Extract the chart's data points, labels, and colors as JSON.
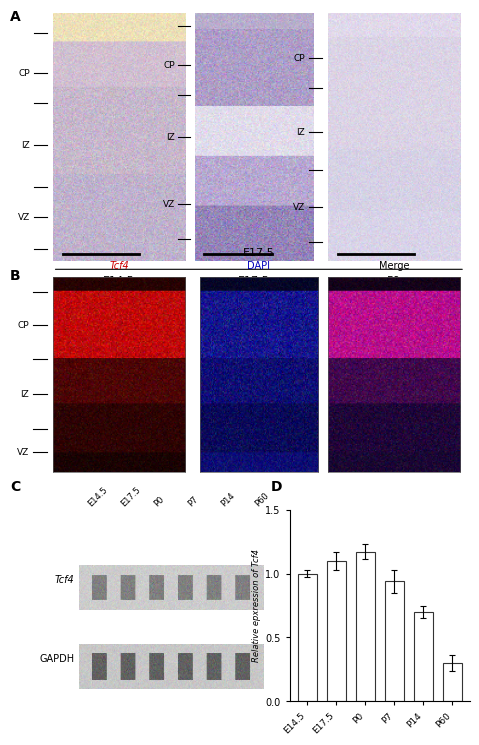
{
  "panel_A_label": "A",
  "panel_B_label": "B",
  "panel_C_label": "C",
  "panel_D_label": "D",
  "panel_A_sublabels": [
    "E14.5",
    "E17.5",
    "P0"
  ],
  "panel_B_title": "E17.5",
  "panel_B_sublabels": [
    "Tcf4",
    "DAPI",
    "Merge"
  ],
  "panel_C_rows": [
    "Tcf4",
    "GAPDH"
  ],
  "panel_C_cols": [
    "E14.5",
    "E17.5",
    "P0",
    "P7",
    "P14",
    "P60"
  ],
  "panel_D_categories": [
    "E14.5",
    "E17.5",
    "P0",
    "P7",
    "P14",
    "P60"
  ],
  "panel_D_values": [
    1.0,
    1.1,
    1.17,
    0.94,
    0.7,
    0.3
  ],
  "panel_D_errors": [
    0.03,
    0.07,
    0.06,
    0.09,
    0.05,
    0.06
  ],
  "panel_D_ylabel": "Relative epxression of Tcf4",
  "panel_D_ylim": [
    0,
    1.5
  ],
  "panel_D_yticks": [
    0.0,
    0.5,
    1.0,
    1.5
  ],
  "bar_color": "#ffffff",
  "bar_edgecolor": "#333333",
  "background_color": "#ffffff",
  "fig_width": 4.74,
  "fig_height": 7.52
}
